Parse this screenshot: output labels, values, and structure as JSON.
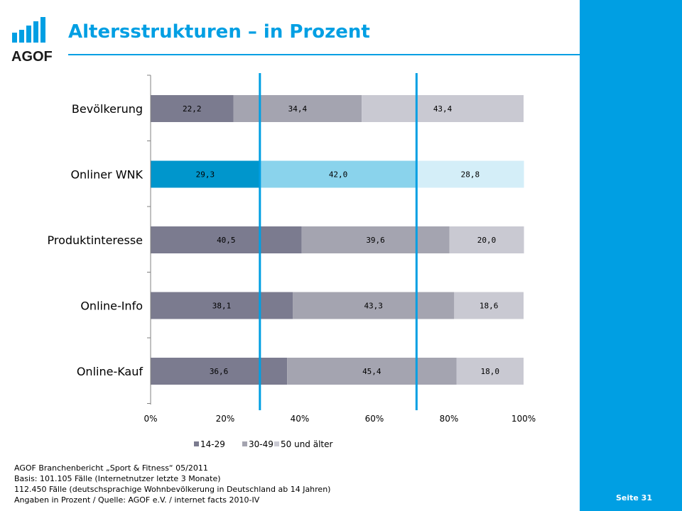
{
  "header": {
    "title": "Altersstrukturen – in Prozent",
    "logo_text": "AGOF"
  },
  "colors": {
    "accent": "#009fe3",
    "series_default": [
      "#7b7b8f",
      "#a4a4b0",
      "#c9c9d2"
    ],
    "series_highlight": [
      "#0096cc",
      "#8ad3ec",
      "#d4eef8"
    ]
  },
  "chart_data": {
    "type": "bar",
    "orientation": "horizontal",
    "stacked": true,
    "categories": [
      "Bevölkerung",
      "Onliner WNK",
      "Produktinteresse",
      "Online-Info",
      "Online-Kauf"
    ],
    "highlight_category": "Onliner WNK",
    "series": [
      {
        "name": "14-29",
        "values": [
          22.2,
          29.3,
          40.5,
          38.1,
          36.6
        ],
        "labels": [
          "22,2",
          "29,3",
          "40,5",
          "38,1",
          "36,6"
        ]
      },
      {
        "name": "30-49",
        "values": [
          34.4,
          42.0,
          39.6,
          43.3,
          45.4
        ],
        "labels": [
          "34,4",
          "42,0",
          "39,6",
          "43,3",
          "45,4"
        ]
      },
      {
        "name": "50 und älter",
        "values": [
          43.4,
          28.8,
          20.0,
          18.6,
          18.0
        ],
        "labels": [
          "43,4",
          "28,8",
          "20,0",
          "18,6",
          "18,0"
        ]
      }
    ],
    "xlim": [
      0,
      100
    ],
    "xticks": [
      "0%",
      "20%",
      "40%",
      "60%",
      "80%",
      "100%"
    ],
    "reference_lines": [
      29.3,
      71.3
    ],
    "legend_position": "bottom"
  },
  "footer": {
    "lines": [
      "AGOF Branchenbericht „Sport & Fitness“ 05/2011",
      "Basis: 101.105 Fälle (Internetnutzer letzte 3 Monate)",
      "112.450 Fälle (deutschsprachige Wohnbevölkerung in Deutschland ab 14 Jahren)",
      "Angaben in Prozent / Quelle: AGOF e.V. / internet facts 2010-IV"
    ]
  },
  "page": {
    "number_label": "Seite 31"
  }
}
